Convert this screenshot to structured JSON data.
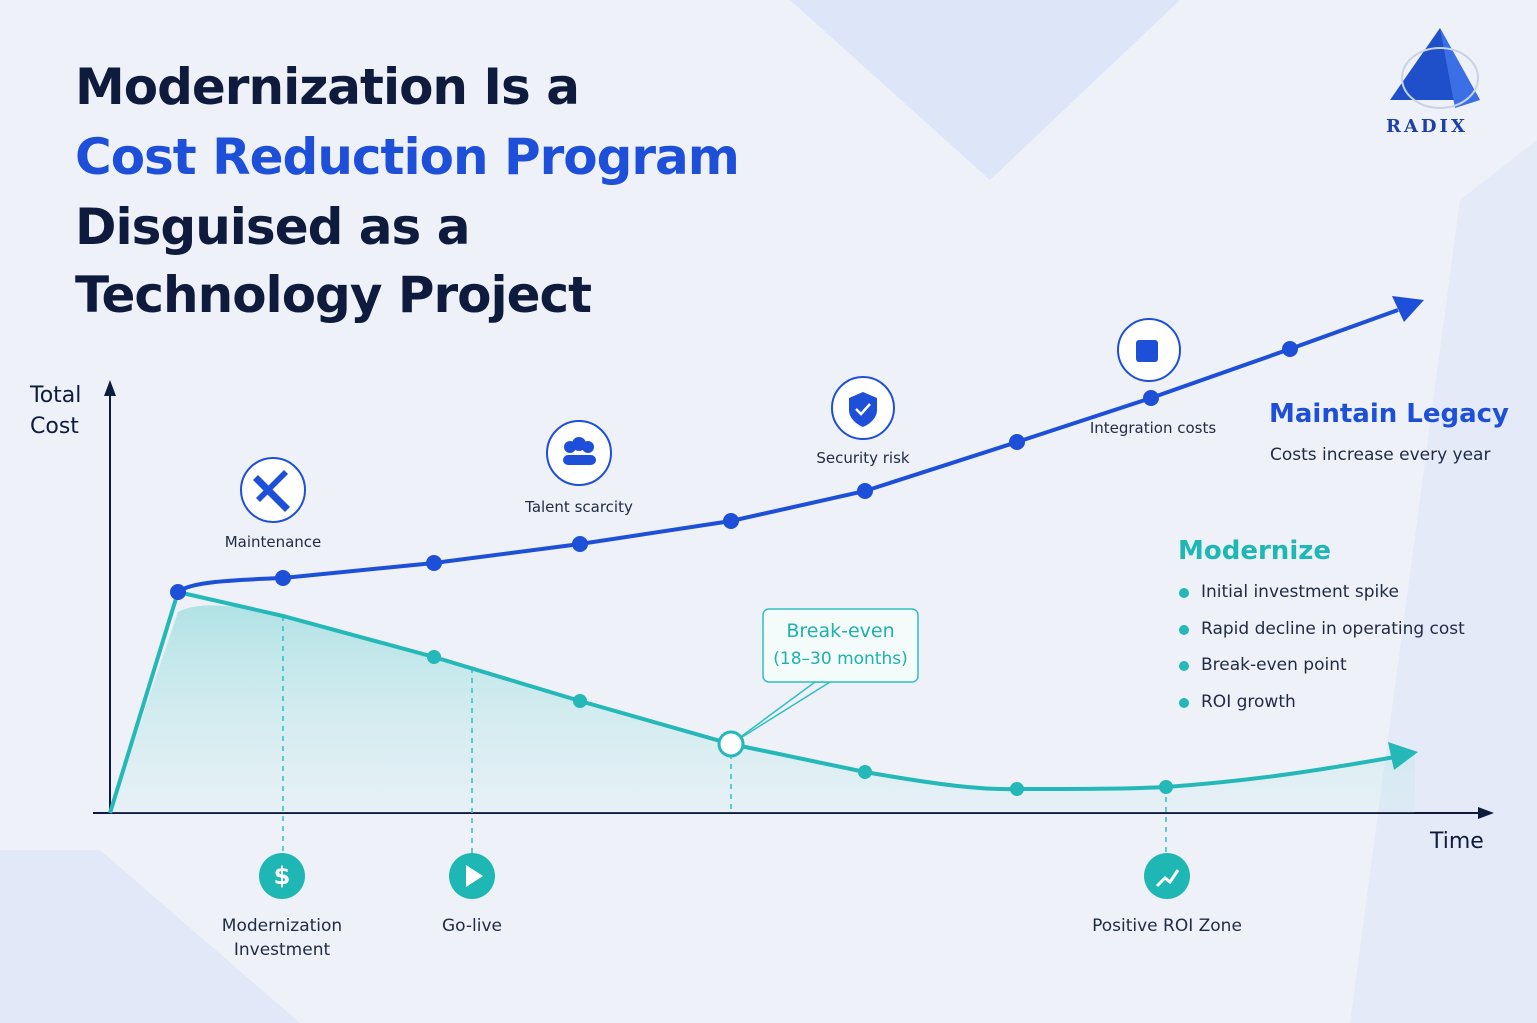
{
  "title": {
    "line1": "Modernization Is a",
    "highlight": "Cost Reduction Program",
    "line3": "Disguised as a",
    "line4": "Technology Project"
  },
  "logo": "RADIX",
  "axes": {
    "y_label": "Total Cost",
    "x_label": "Time"
  },
  "legacy_markers": [
    "Maintenance",
    "Talent scarcity",
    "Security risk",
    "Integration costs"
  ],
  "modern_markers": [
    "Modernization Investment",
    "Go-live",
    "Positive ROI Zone"
  ],
  "callout": {
    "title": "Break-even",
    "detail": "(18–30 months)"
  },
  "legend": {
    "legacy": {
      "title": "Maintain Legacy",
      "detail": "Costs increase every year"
    },
    "modernize": {
      "title": "Modernize",
      "items": [
        "Initial investment spike",
        "Rapid decline in operating cost",
        "Break-even point",
        "ROI growth"
      ]
    }
  }
}
